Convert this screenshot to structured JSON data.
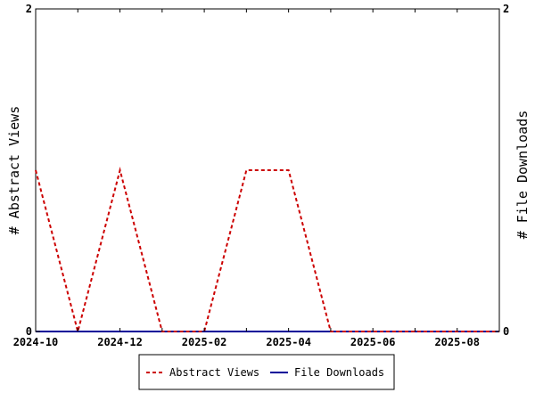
{
  "chart_data": {
    "type": "line",
    "title": "",
    "x_tick_labels": [
      "2024-10",
      "2024-12",
      "2025-02",
      "2025-04",
      "2025-06",
      "2025-08"
    ],
    "x": [
      "2024-10",
      "2024-11",
      "2024-12",
      "2025-01",
      "2025-02",
      "2025-03",
      "2025-04",
      "2025-05",
      "2025-06",
      "2025-07",
      "2025-08",
      "2025-09"
    ],
    "y_left_label": "# Abstract Views",
    "y_right_label": "# File Downloads",
    "y_left_lim": [
      0,
      2
    ],
    "y_right_lim": [
      0,
      2
    ],
    "y_left_ticks": [
      "0",
      "2"
    ],
    "y_right_ticks": [
      "0",
      "2"
    ],
    "grid": false,
    "legend_position": "bottom",
    "series": [
      {
        "name": "Abstract Views",
        "axis": "left",
        "color": "#cc0000",
        "line_style": "dashed",
        "values": [
          1,
          0,
          1,
          0,
          0,
          1,
          1,
          0,
          0,
          0,
          0,
          0
        ]
      },
      {
        "name": "File Downloads",
        "axis": "right",
        "color": "#000099",
        "line_style": "solid",
        "values": [
          0,
          0,
          0,
          0,
          0,
          0,
          0,
          0,
          0,
          0,
          0,
          0
        ]
      }
    ]
  }
}
